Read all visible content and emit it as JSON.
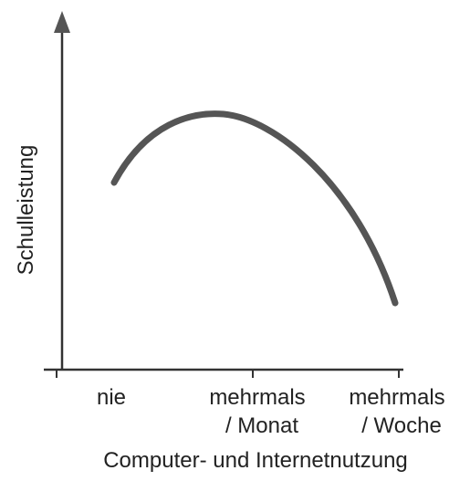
{
  "axes": {
    "y_label": "Schulleistung",
    "x_label": "Computer- und Internetnutzung"
  },
  "categories": [
    [
      "nie"
    ],
    [
      "mehrmals",
      "/ Monat"
    ],
    [
      "mehrmals",
      "/ Woche"
    ]
  ]
}
